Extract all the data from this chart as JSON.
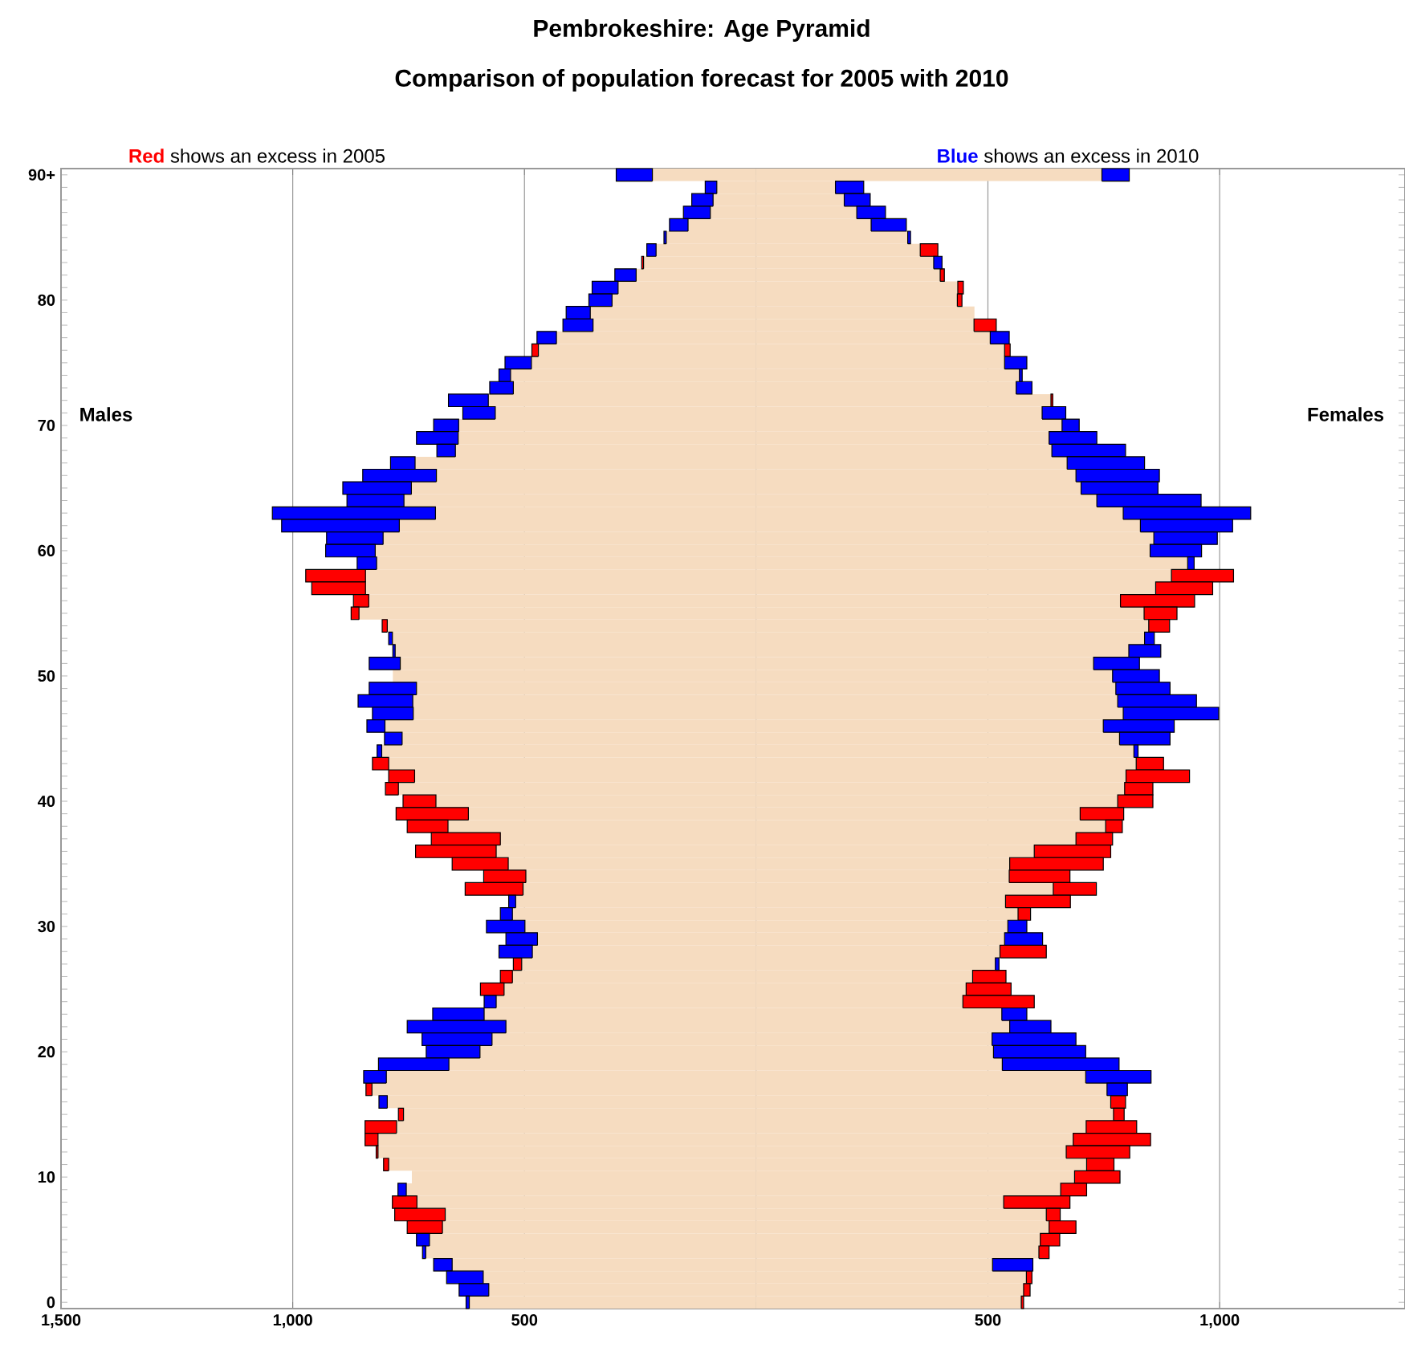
{
  "chart_data": {
    "type": "bar",
    "orientation": "horizontal",
    "stacked": true,
    "title": "Pembrokeshire: Age Pyramid",
    "subtitle": "Comparison of  population forecast for 2005 with 2010",
    "annotations": [
      "**Red** shows an excess in 2005",
      "**Blue** shows an excess in 2010",
      "Males",
      "Females"
    ],
    "categories": [
      "90+",
      null,
      null,
      null,
      null,
      null,
      null,
      null,
      null,
      null,
      "80",
      null,
      null,
      null,
      null,
      null,
      null,
      null,
      null,
      null,
      "70",
      null,
      null,
      null,
      null,
      null,
      null,
      null,
      null,
      null,
      "60",
      null,
      null,
      null,
      null,
      null,
      null,
      null,
      null,
      null,
      "50",
      null,
      null,
      null,
      null,
      null,
      null,
      null,
      null,
      null,
      "40",
      null,
      null,
      null,
      null,
      null,
      null,
      null,
      null,
      null,
      "30",
      null,
      null,
      null,
      null,
      null,
      null,
      null,
      null,
      null,
      "20",
      null,
      null,
      null,
      null,
      null,
      null,
      null,
      null,
      null,
      "10",
      null,
      null,
      null,
      null,
      null,
      null,
      null,
      null,
      null,
      "0"
    ],
    "series": [
      {
        "color": "#f6dcc0",
        "values": [
          -224,
          -85,
          -93,
          -99,
          -147,
          -194,
          -216,
          -243,
          -259,
          -298,
          -311,
          -358,
          -352,
          -431,
          -470,
          -485,
          -530,
          -524,
          -578,
          -563,
          -642,
          -643,
          -649,
          -736,
          -690,
          -744,
          -760,
          -692,
          -770,
          -805,
          -822,
          -819,
          -843,
          -843,
          -836,
          -857,
          -796,
          -785,
          -779,
          -768,
          -784,
          -733,
          -741,
          -740,
          -801,
          -764,
          -808,
          -793,
          -737,
          -772,
          -691,
          -621,
          -665,
          -552,
          -561,
          -535,
          -497,
          -503,
          -519,
          -526,
          -499,
          -472,
          -483,
          -506,
          -526,
          -544,
          -561,
          -587,
          -540,
          -570,
          -596,
          -663,
          -798,
          -829,
          -796,
          -761,
          -776,
          -816,
          -816,
          -793,
          -743,
          -755,
          -732,
          -671,
          -677,
          -705,
          -713,
          -656,
          -589,
          -577,
          -619
        ]
      },
      {
        "color": "#ff0000",
        "values": [
          null,
          null,
          null,
          null,
          null,
          null,
          null,
          -4,
          null,
          null,
          null,
          null,
          null,
          null,
          -14,
          null,
          null,
          null,
          null,
          null,
          null,
          null,
          null,
          null,
          null,
          null,
          null,
          null,
          null,
          null,
          null,
          null,
          -129,
          -116,
          -33,
          -17,
          -11,
          null,
          null,
          null,
          null,
          null,
          null,
          null,
          null,
          null,
          null,
          -35,
          -56,
          -28,
          -71,
          -156,
          -88,
          -149,
          -174,
          -121,
          -91,
          -125,
          null,
          null,
          null,
          null,
          null,
          -18,
          -26,
          -51,
          null,
          null,
          null,
          null,
          null,
          null,
          null,
          -13,
          null,
          -11,
          -68,
          -28,
          -4,
          -11,
          null,
          null,
          -53,
          -109,
          -76,
          null,
          null,
          null,
          null,
          null,
          null
        ]
      },
      {
        "color": "#0000ff",
        "values": [
          -78,
          -25,
          -46,
          -58,
          -40,
          -5,
          -20,
          null,
          -46,
          -56,
          -50,
          -52,
          -65,
          -42,
          null,
          -57,
          -25,
          -51,
          -86,
          -70,
          -54,
          -90,
          -40,
          -53,
          -159,
          -148,
          -123,
          -352,
          -254,
          -122,
          -107,
          -42,
          null,
          null,
          null,
          null,
          null,
          -8,
          -5,
          -67,
          null,
          -102,
          -118,
          -88,
          -39,
          -38,
          -10,
          null,
          null,
          null,
          null,
          null,
          null,
          null,
          null,
          null,
          null,
          null,
          -15,
          -26,
          -83,
          -68,
          -72,
          null,
          null,
          null,
          -26,
          -111,
          -213,
          -151,
          -116,
          -152,
          -49,
          null,
          -18,
          null,
          null,
          null,
          null,
          null,
          null,
          -18,
          null,
          null,
          null,
          -28,
          -7,
          -40,
          -79,
          -64,
          -7
        ]
      },
      {
        "color": "#f6dcc0",
        "values": [
          746,
          171,
          190,
          217,
          248,
          327,
          354,
          383,
          397,
          435,
          434,
          471,
          470,
          505,
          536,
          536,
          568,
          561,
          636,
          617,
          660,
          632,
          638,
          671,
          690,
          701,
          735,
          792,
          829,
          858,
          850,
          931,
          896,
          862,
          786,
          837,
          847,
          838,
          804,
          728,
          769,
          776,
          780,
          792,
          749,
          784,
          815,
          820,
          798,
          795,
          780,
          699,
          754,
          690,
          600,
          547,
          546,
          641,
          538,
          565,
          543,
          536,
          526,
          516,
          467,
          453,
          446,
          530,
          547,
          509,
          512,
          531,
          711,
          757,
          765,
          771,
          712,
          684,
          669,
          713,
          687,
          657,
          534,
          626,
          632,
          613,
          610,
          510,
          583,
          577,
          572
        ]
      },
      {
        "color": "#ff0000",
        "values": [
          null,
          null,
          null,
          null,
          null,
          null,
          38,
          null,
          9,
          12,
          10,
          null,
          48,
          null,
          12,
          null,
          null,
          null,
          4,
          null,
          null,
          null,
          null,
          null,
          null,
          null,
          null,
          null,
          null,
          null,
          null,
          null,
          134,
          123,
          160,
          71,
          45,
          null,
          null,
          null,
          null,
          null,
          null,
          null,
          null,
          null,
          null,
          59,
          137,
          61,
          76,
          94,
          36,
          79,
          165,
          202,
          131,
          93,
          140,
          27,
          null,
          null,
          100,
          null,
          72,
          97,
          154,
          null,
          null,
          null,
          null,
          null,
          null,
          null,
          32,
          23,
          109,
          167,
          137,
          59,
          98,
          56,
          143,
          30,
          58,
          42,
          22,
          null,
          12,
          14,
          5
        ]
      },
      {
        "color": "#0000ff",
        "values": [
          59,
          61,
          56,
          62,
          76,
          6,
          null,
          18,
          null,
          null,
          null,
          null,
          null,
          41,
          null,
          48,
          6,
          34,
          null,
          51,
          37,
          103,
          159,
          167,
          180,
          166,
          225,
          275,
          199,
          137,
          111,
          14,
          null,
          null,
          null,
          null,
          null,
          21,
          69,
          99,
          101,
          117,
          170,
          206,
          153,
          109,
          9,
          null,
          null,
          null,
          null,
          null,
          null,
          null,
          null,
          null,
          null,
          null,
          null,
          null,
          41,
          82,
          null,
          8,
          null,
          null,
          null,
          54,
          89,
          181,
          199,
          252,
          141,
          44,
          null,
          null,
          null,
          null,
          null,
          null,
          null,
          null,
          null,
          null,
          null,
          null,
          null,
          87,
          null,
          null,
          null
        ]
      }
    ],
    "xlim": [
      -1500,
      1400
    ],
    "xticks": [
      {
        "value": -1500,
        "label": "1,500"
      },
      {
        "value": -1000,
        "label": "1,000"
      },
      {
        "value": -500,
        "label": "500"
      },
      {
        "value": 0,
        "label": null
      },
      {
        "value": 500,
        "label": "500"
      },
      {
        "value": 1000,
        "label": "1,000"
      }
    ],
    "grid": "x"
  }
}
